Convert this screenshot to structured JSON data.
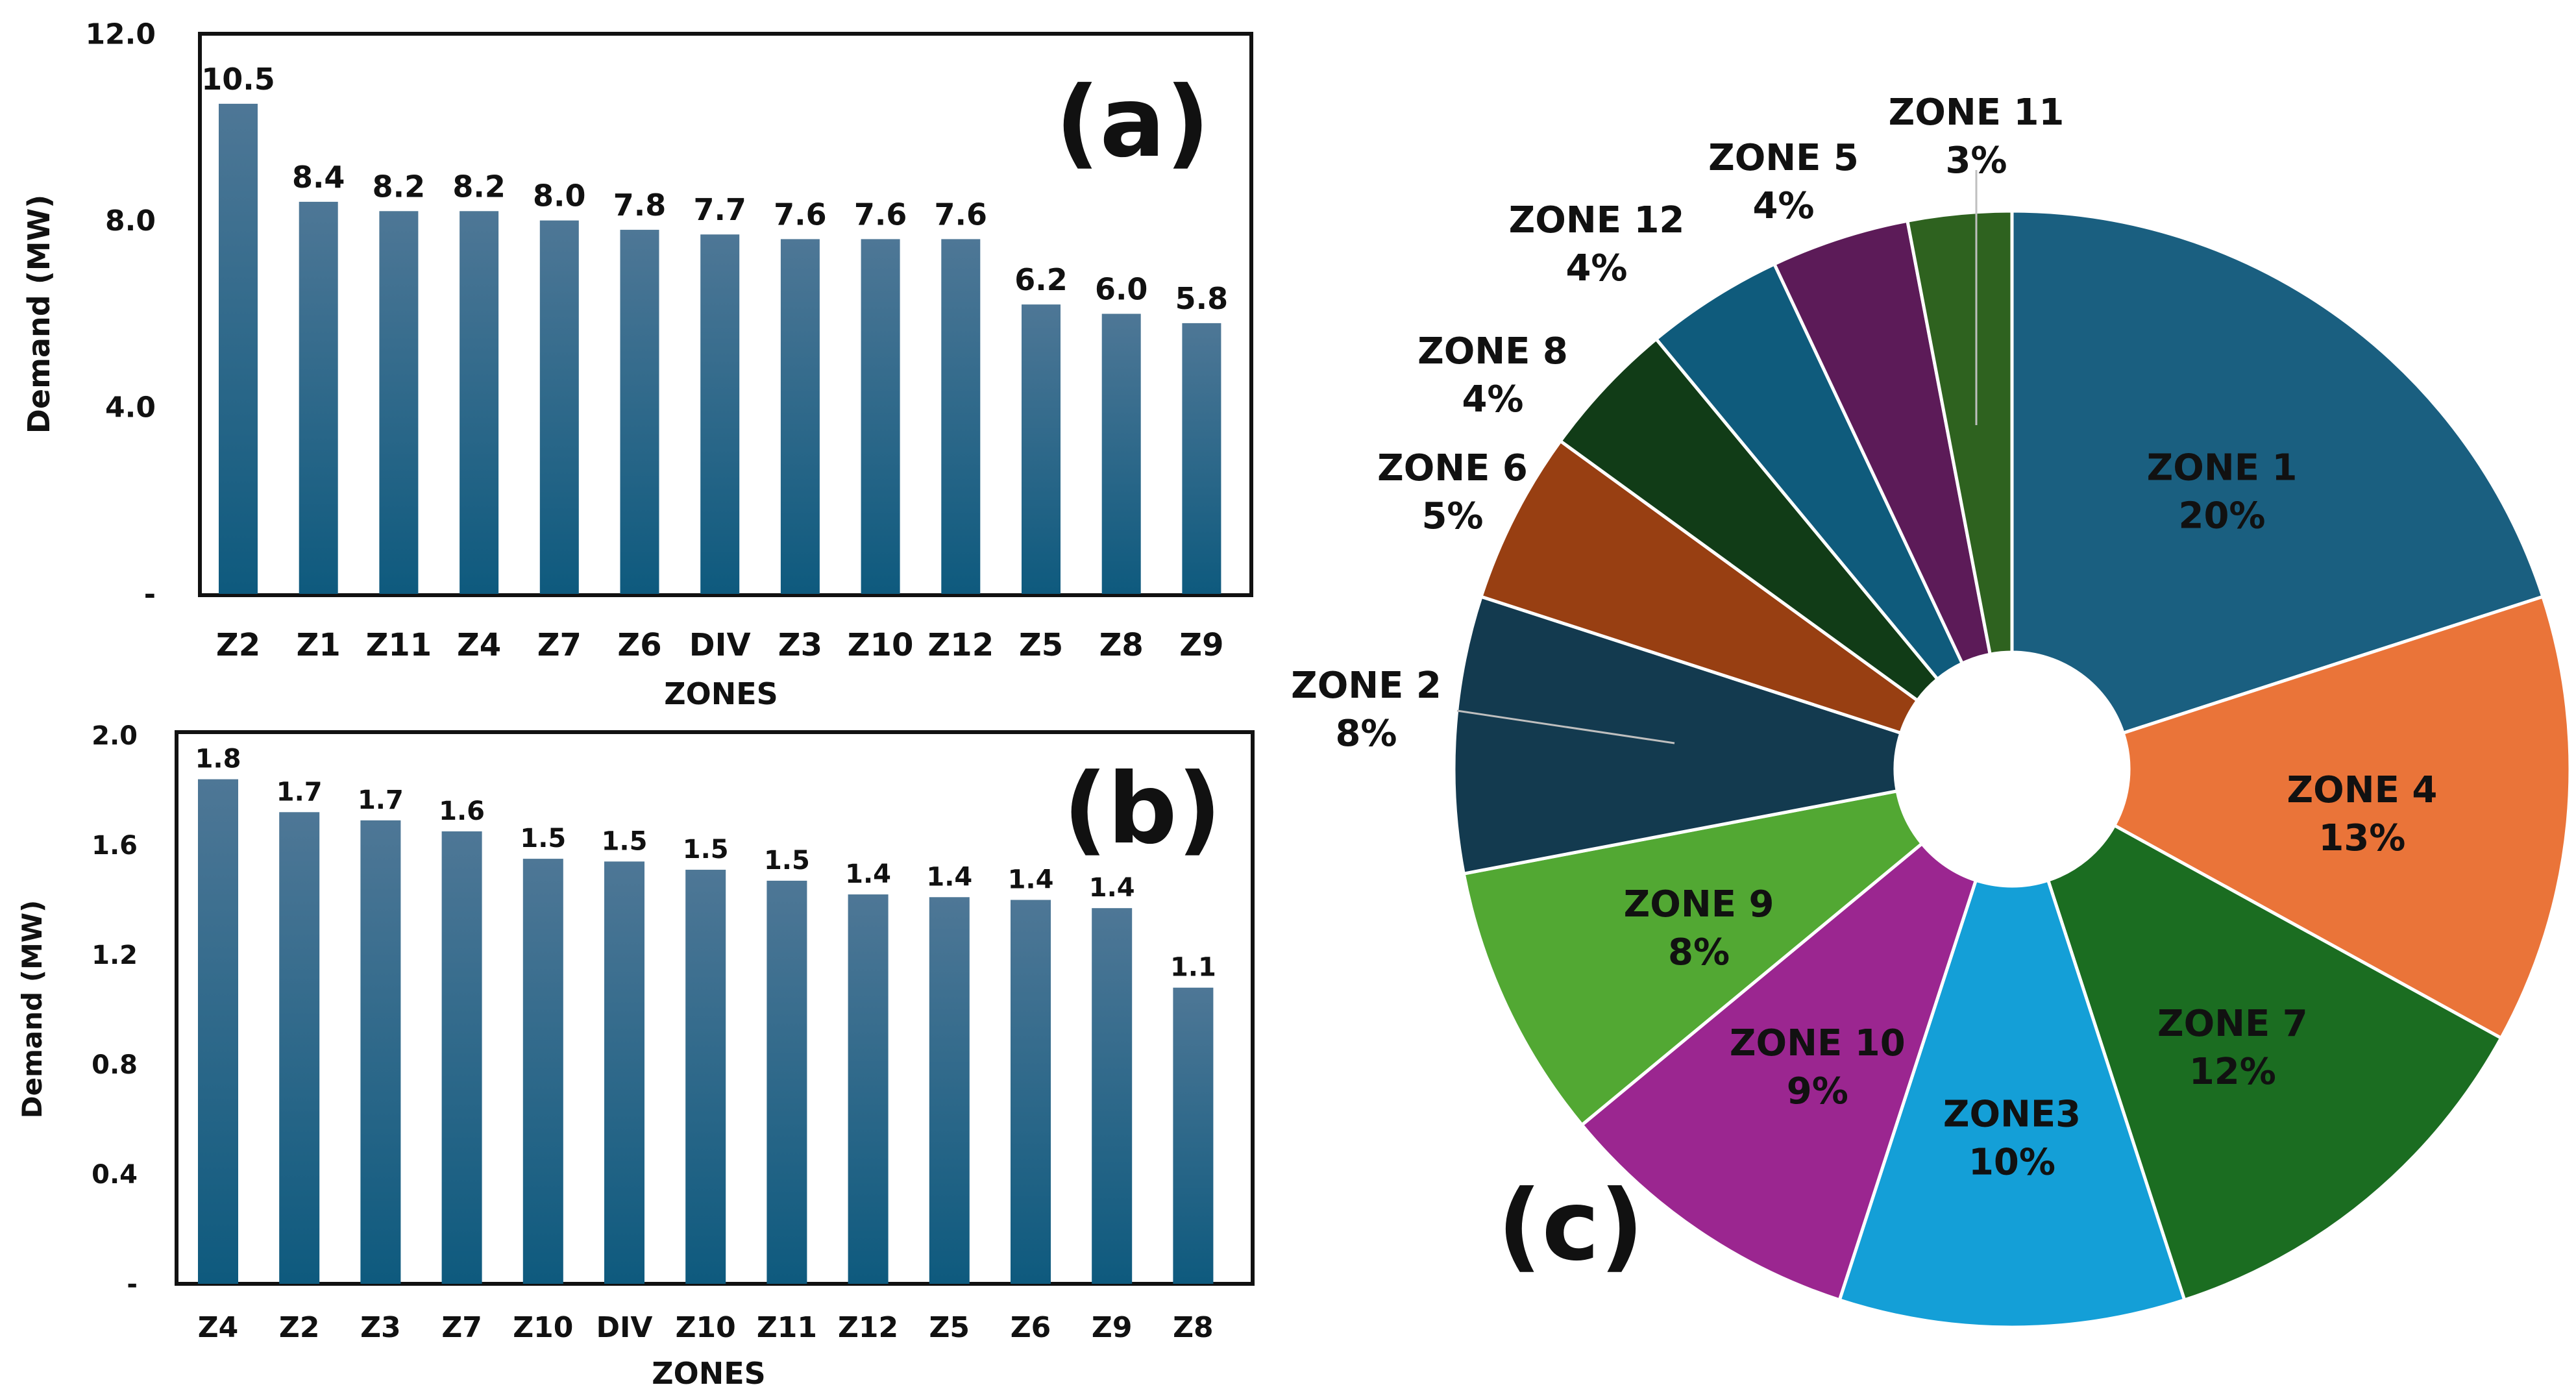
{
  "chart_data": [
    {
      "id": "a",
      "type": "bar",
      "panel_label": "(a)",
      "xlabel": "ZONES",
      "ylabel": "Demand (MW)",
      "ylim": [
        0,
        12
      ],
      "ticks": [
        0,
        4,
        8,
        12
      ],
      "tick_labels": [
        "-",
        "4.0",
        "8.0",
        "12.0"
      ],
      "categories": [
        "Z2",
        "Z1",
        "Z11",
        "Z4",
        "Z7",
        "Z6",
        "DIV",
        "Z3",
        "Z10",
        "Z12",
        "Z5",
        "Z8",
        "Z9"
      ],
      "values": [
        10.5,
        8.4,
        8.2,
        8.2,
        8.0,
        7.8,
        7.7,
        7.6,
        7.6,
        7.6,
        6.2,
        6.0,
        5.8
      ],
      "value_labels": [
        "10.5",
        "8.4",
        "8.2",
        "8.2",
        "8.0",
        "7.8",
        "7.7",
        "7.6",
        "7.6",
        "7.6",
        "6.2",
        "6.0",
        "5.8"
      ],
      "bar_color_top": "#4e7796",
      "bar_color_bottom": "#0e5a7e",
      "grid": false
    },
    {
      "id": "b",
      "type": "bar",
      "panel_label": "(b)",
      "xlabel": "ZONES",
      "ylabel": "Demand (MW)",
      "ylim": [
        0,
        2
      ],
      "ticks": [
        0,
        0.4,
        0.8,
        1.2,
        1.6,
        2.0
      ],
      "tick_labels": [
        "-",
        "0.4",
        "0.8",
        "1.2",
        "1.6",
        "2.0"
      ],
      "categories": [
        "Z4",
        "Z2",
        "Z3",
        "Z7",
        "Z10",
        "DIV",
        "Z10",
        "Z11",
        "Z12",
        "Z5",
        "Z6",
        "Z9",
        "Z8"
      ],
      "values": [
        1.84,
        1.72,
        1.69,
        1.65,
        1.55,
        1.54,
        1.51,
        1.47,
        1.42,
        1.41,
        1.4,
        1.37,
        1.08
      ],
      "value_labels": [
        "1.8",
        "1.7",
        "1.7",
        "1.6",
        "1.5",
        "1.5",
        "1.5",
        "1.5",
        "1.4",
        "1.4",
        "1.4",
        "1.4",
        "1.1"
      ],
      "bar_color_top": "#4e7796",
      "bar_color_bottom": "#0e5a7e",
      "grid": false
    },
    {
      "id": "c",
      "type": "pie",
      "donut": true,
      "panel_label": "(c)",
      "slices": [
        {
          "label": "ZONE 1",
          "pct": "20%",
          "value": 20,
          "color": "#1a5f80"
        },
        {
          "label": "ZONE 4",
          "pct": "13%",
          "value": 13,
          "color": "#ea7439"
        },
        {
          "label": "ZONE 7",
          "pct": "12%",
          "value": 12,
          "color": "#1b6d21"
        },
        {
          "label": "ZONE3",
          "pct": "10%",
          "value": 10,
          "color": "#149fd7"
        },
        {
          "label": "ZONE 10",
          "pct": "9%",
          "value": 9,
          "color": "#9b2690"
        },
        {
          "label": "ZONE 9",
          "pct": "8%",
          "value": 8,
          "color": "#52a833"
        },
        {
          "label": "ZONE 2",
          "pct": "8%",
          "value": 8,
          "color": "#133a4f"
        },
        {
          "label": "ZONE 6",
          "pct": "5%",
          "value": 5,
          "color": "#983f12"
        },
        {
          "label": "ZONE 8",
          "pct": "4%",
          "value": 4,
          "color": "#113c17"
        },
        {
          "label": "ZONE 12",
          "pct": "4%",
          "value": 4,
          "color": "#0f5b7c"
        },
        {
          "label": "ZONE 5",
          "pct": "4%",
          "value": 4,
          "color": "#5c1b58"
        },
        {
          "label": "ZONE 11",
          "pct": "3%",
          "value": 3,
          "color": "#2e621f"
        }
      ]
    }
  ]
}
